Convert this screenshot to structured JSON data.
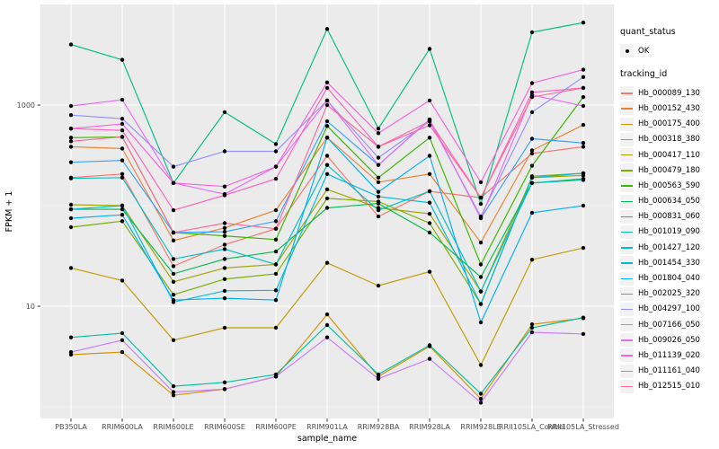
{
  "figure": {
    "xlabel": "sample_name",
    "ylabel": "FPKM + 1",
    "y_tick_labels": [
      "10",
      "1000"
    ],
    "panel_bg": "#EBEBEB",
    "gridline_color": "#FFFFFF",
    "tick_text_color": "#4D4D4D"
  },
  "legend": {
    "quant_status_title": "quant_status",
    "quant_status_items": [
      {
        "label": "OK"
      }
    ],
    "tracking_id_title": "tracking_id"
  },
  "chart_data": {
    "type": "line",
    "title": "",
    "xlabel": "sample_name",
    "ylabel": "FPKM + 1",
    "y_scale": "log10",
    "y_ticks": [
      10,
      1000
    ],
    "y_minor_ticks": [
      1,
      100
    ],
    "grid": true,
    "legend_position": "right",
    "point_color": "#000000",
    "categories": [
      "PB350LA",
      "RRIM600LA",
      "RRIM600LE",
      "RRIM600SE",
      "RRIM600PE",
      "RRIM901LA",
      "RRIM928BA",
      "RRIM928LA",
      "RRIM928LE",
      "RRII105LA_Control",
      "RRII105LA_Stressed"
    ],
    "series": [
      {
        "name": "Hb_000089_130",
        "color": "#F8766D",
        "values": [
          190,
          206,
          25,
          41,
          59,
          313,
          78,
          139,
          120,
          330,
          385
        ]
      },
      {
        "name": "Hb_000152_430",
        "color": "#EA8331",
        "values": [
          385,
          370,
          45,
          60,
          90,
          475,
          171,
          206,
          43,
          354,
          635
        ]
      },
      {
        "name": "Hb_000175_400",
        "color": "#D89000",
        "values": [
          3.3,
          3.5,
          1.3,
          1.5,
          2.0,
          8.3,
          2.0,
          4.0,
          1.2,
          6.6,
          7.6
        ]
      },
      {
        "name": "Hb_000318_380",
        "color": "#C09B00",
        "values": [
          24,
          18,
          4.6,
          6.1,
          6.1,
          27,
          16,
          22,
          2.6,
          29,
          38
        ]
      },
      {
        "name": "Hb_000417_110",
        "color": "#A3A500",
        "values": [
          102,
          100,
          17.5,
          24,
          26,
          145,
          95,
          83,
          14,
          190,
          200
        ]
      },
      {
        "name": "Hb_000479_180",
        "color": "#7CAE00",
        "values": [
          61,
          70,
          13,
          18.6,
          21,
          118,
          110,
          67,
          10.5,
          196,
          210
        ]
      },
      {
        "name": "Hb_000563_590",
        "color": "#39B600",
        "values": [
          474,
          483,
          54,
          50,
          46,
          620,
          190,
          474,
          26,
          249,
          1200
        ]
      },
      {
        "name": "Hb_000634_050",
        "color": "#00BB4E",
        "values": [
          92,
          92,
          21,
          29.5,
          35,
          95,
          105,
          54,
          19.5,
          168,
          185
        ]
      },
      {
        "name": "Hb_000831_060",
        "color": "#00BF7D",
        "values": [
          4000,
          2820,
          168,
          850,
          410,
          5700,
          583,
          3620,
          104,
          5300,
          6600
        ]
      },
      {
        "name": "Hb_001019_090",
        "color": "#00C1A3",
        "values": [
          4.9,
          5.4,
          1.6,
          1.75,
          2.1,
          6.5,
          2.1,
          4.1,
          1.35,
          6.1,
          7.7
        ]
      },
      {
        "name": "Hb_001427_120",
        "color": "#00BFC4",
        "values": [
          187,
          190,
          29.5,
          37,
          26,
          254,
          90,
          139,
          14,
          168,
          180
        ]
      },
      {
        "name": "Hb_001454_330",
        "color": "#00BAE0",
        "values": [
          92,
          100,
          11,
          14.2,
          14.4,
          206,
          123,
          107,
          10.5,
          190,
          210
        ]
      },
      {
        "name": "Hb_001804_040",
        "color": "#00B0F6",
        "values": [
          75,
          81,
          11.5,
          12,
          11.5,
          475,
          137,
          313,
          6.9,
          85,
          100
        ]
      },
      {
        "name": "Hb_002025_320",
        "color": "#35A2FF",
        "values": [
          270,
          282,
          54,
          55,
          70,
          690,
          254,
          718,
          75,
          463,
          420
        ]
      },
      {
        "name": "Hb_004297_100",
        "color": "#9590FF",
        "values": [
          795,
          732,
          244,
          347,
          347,
          1110,
          300,
          690,
          78,
          850,
          1900
        ]
      },
      {
        "name": "Hb_007166_050",
        "color": "#C77CFF",
        "values": [
          3.5,
          4.6,
          1.4,
          1.5,
          2.0,
          4.9,
          1.9,
          3.0,
          1.1,
          5.5,
          5.3
        ]
      },
      {
        "name": "Hb_009026_050",
        "color": "#E76BF3",
        "values": [
          980,
          1130,
          168,
          130,
          244,
          1110,
          254,
          718,
          75,
          1260,
          980
        ]
      },
      {
        "name": "Hb_011139_020",
        "color": "#FA62DB",
        "values": [
          583,
          650,
          168,
          155,
          244,
          1680,
          525,
          1110,
          171,
          1650,
          2250
        ]
      },
      {
        "name": "Hb_011161_040",
        "color": "#FF62BC",
        "values": [
          583,
          560,
          90,
          127,
          185,
          1480,
          385,
          690,
          120,
          1340,
          1480
        ]
      },
      {
        "name": "Hb_012515_010",
        "color": "#FF6A98",
        "values": [
          437,
          483,
          54,
          67,
          59,
          1000,
          385,
          630,
          120,
          1200,
          1480
        ]
      }
    ]
  }
}
